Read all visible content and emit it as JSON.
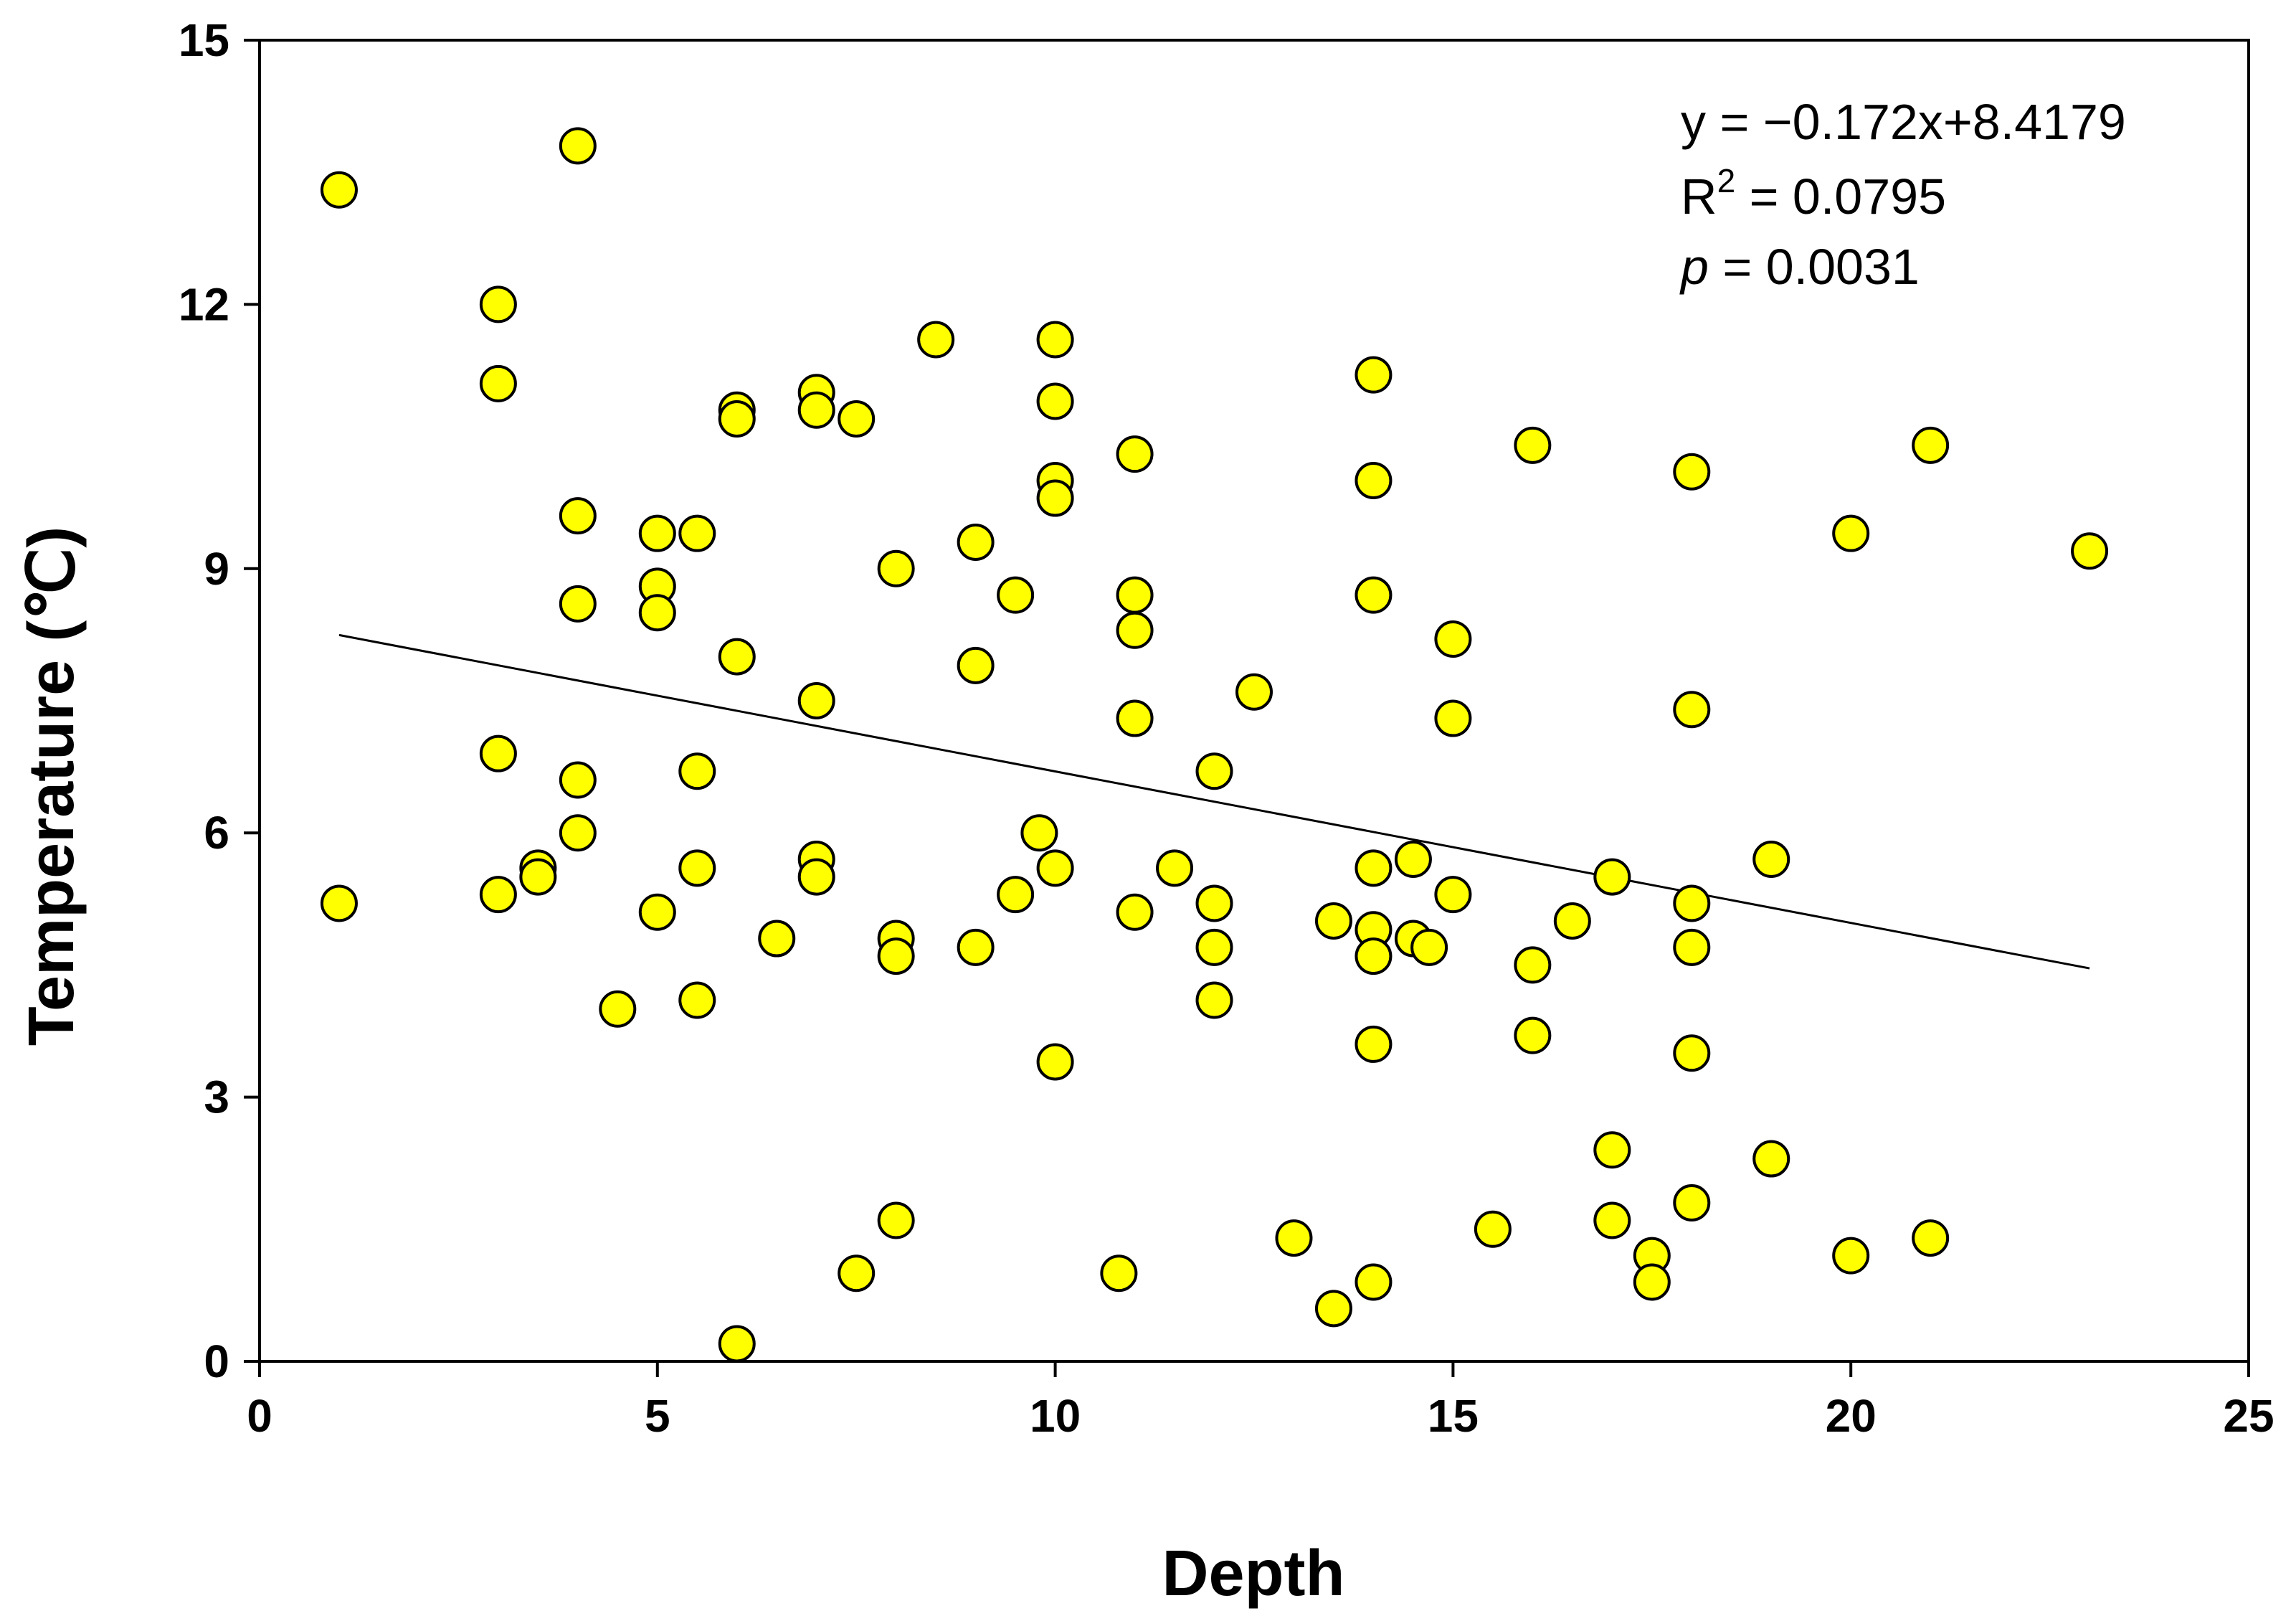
{
  "chart_data": {
    "type": "scatter",
    "title": "",
    "xlabel": "Depth",
    "ylabel": "Temperature (℃)",
    "xlim": [
      0,
      25
    ],
    "ylim": [
      0,
      15
    ],
    "xticks": [
      "0",
      "5",
      "10",
      "15",
      "20",
      "25"
    ],
    "yticks": [
      "0",
      "3",
      "6",
      "9",
      "12",
      "15"
    ],
    "grid": false,
    "marker_color": "#ffff00",
    "marker_edge_color": "#000000",
    "annotations": {
      "equation": "y = −0.172x+8.4179",
      "r2_prefix": "R",
      "r2_sup": "2",
      "r2_rest": " = 0.0795",
      "p_label": "p",
      "p_rest": " = 0.0031"
    },
    "trendline": {
      "slope": -0.172,
      "intercept": 8.4179,
      "x_range": [
        1,
        23
      ]
    },
    "series": [
      {
        "name": "observations",
        "points": [
          [
            1,
            13.3
          ],
          [
            1,
            5.2
          ],
          [
            3,
            12.0
          ],
          [
            3,
            11.1
          ],
          [
            3,
            6.9
          ],
          [
            3,
            5.3
          ],
          [
            3.5,
            5.6
          ],
          [
            3.5,
            5.5
          ],
          [
            4,
            13.8
          ],
          [
            4,
            9.6
          ],
          [
            4,
            8.6
          ],
          [
            4,
            6.6
          ],
          [
            4,
            6.0
          ],
          [
            4.5,
            4.0
          ],
          [
            5,
            9.4
          ],
          [
            5,
            8.8
          ],
          [
            5,
            8.5
          ],
          [
            5,
            5.1
          ],
          [
            5.5,
            9.4
          ],
          [
            5.5,
            6.7
          ],
          [
            5.5,
            5.6
          ],
          [
            5.5,
            4.1
          ],
          [
            6,
            10.8
          ],
          [
            6,
            10.7
          ],
          [
            6,
            8.0
          ],
          [
            6,
            0.2
          ],
          [
            6.5,
            4.8
          ],
          [
            7,
            11.0
          ],
          [
            7,
            10.8
          ],
          [
            7,
            7.5
          ],
          [
            7,
            5.7
          ],
          [
            7,
            5.5
          ],
          [
            7.5,
            10.7
          ],
          [
            7.5,
            1.0
          ],
          [
            8,
            9.0
          ],
          [
            8,
            4.8
          ],
          [
            8,
            4.6
          ],
          [
            8,
            1.6
          ],
          [
            8.5,
            11.6
          ],
          [
            9,
            9.3
          ],
          [
            9,
            7.9
          ],
          [
            9,
            4.7
          ],
          [
            9.5,
            8.7
          ],
          [
            9.5,
            5.3
          ],
          [
            9.8,
            6.0
          ],
          [
            10,
            11.6
          ],
          [
            10,
            10.9
          ],
          [
            10,
            10.0
          ],
          [
            10,
            9.8
          ],
          [
            10,
            5.6
          ],
          [
            10,
            3.4
          ],
          [
            10.8,
            1.0
          ],
          [
            11,
            10.3
          ],
          [
            11,
            8.7
          ],
          [
            11,
            8.3
          ],
          [
            11,
            7.3
          ],
          [
            11,
            5.1
          ],
          [
            11.5,
            5.6
          ],
          [
            12,
            6.7
          ],
          [
            12,
            5.2
          ],
          [
            12,
            4.7
          ],
          [
            12,
            4.1
          ],
          [
            12.5,
            7.6
          ],
          [
            13,
            1.4
          ],
          [
            13.5,
            5.0
          ],
          [
            13.5,
            0.6
          ],
          [
            14,
            11.2
          ],
          [
            14,
            10.0
          ],
          [
            14,
            8.7
          ],
          [
            14,
            5.6
          ],
          [
            14,
            4.9
          ],
          [
            14,
            4.6
          ],
          [
            14,
            3.6
          ],
          [
            14,
            0.9
          ],
          [
            14.5,
            5.7
          ],
          [
            14.5,
            4.8
          ],
          [
            14.7,
            4.7
          ],
          [
            15,
            8.2
          ],
          [
            15,
            7.3
          ],
          [
            15,
            5.3
          ],
          [
            15.5,
            1.5
          ],
          [
            16,
            10.4
          ],
          [
            16,
            4.5
          ],
          [
            16,
            3.7
          ],
          [
            16.5,
            5.0
          ],
          [
            17,
            5.5
          ],
          [
            17,
            2.4
          ],
          [
            17,
            1.6
          ],
          [
            17.5,
            1.2
          ],
          [
            17.5,
            0.9
          ],
          [
            18,
            10.1
          ],
          [
            18,
            7.4
          ],
          [
            18,
            5.2
          ],
          [
            18,
            4.7
          ],
          [
            18,
            3.5
          ],
          [
            18,
            1.8
          ],
          [
            19,
            5.7
          ],
          [
            19,
            2.3
          ],
          [
            20,
            9.4
          ],
          [
            20,
            1.2
          ],
          [
            21,
            10.4
          ],
          [
            21,
            1.4
          ],
          [
            23,
            9.2
          ]
        ]
      }
    ]
  }
}
